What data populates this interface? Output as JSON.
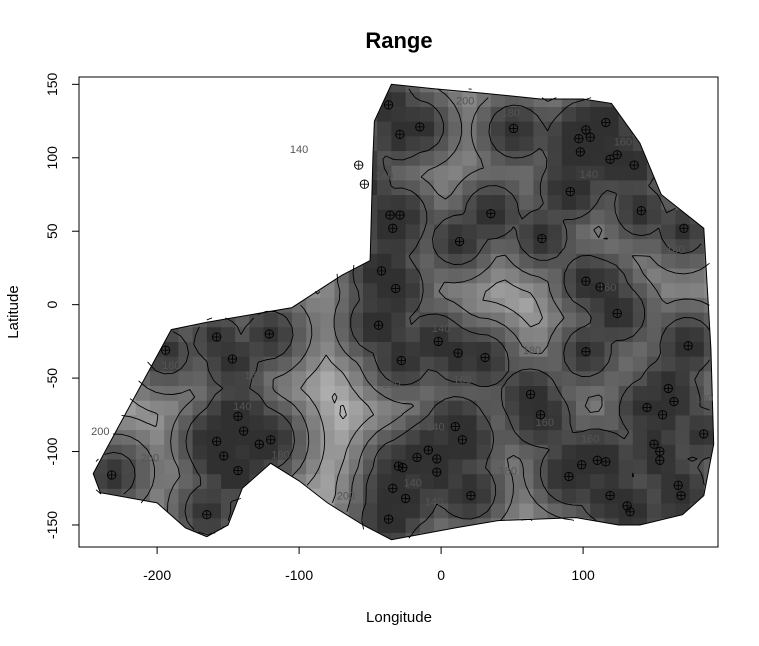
{
  "chart_data": {
    "type": "heatmap",
    "title": "Range",
    "xlabel": "Longitude",
    "ylabel": "Latitude",
    "xlim": [
      -255,
      195
    ],
    "ylim": [
      -165,
      155
    ],
    "xticks": [
      -200,
      -100,
      0,
      100
    ],
    "yticks": [
      -150,
      -100,
      -50,
      0,
      50,
      100,
      150
    ],
    "x_tick_labels": [
      "-200",
      "-100",
      "0",
      "100"
    ],
    "y_tick_labels": [
      "-150",
      "-100",
      "-50",
      "0",
      "50",
      "100",
      "150"
    ],
    "grid": false,
    "legend": "none",
    "value_range": [
      120,
      220
    ],
    "grayscale": {
      "low_color": "#303030",
      "high_color": "#cfcfcf"
    },
    "contour_levels": [
      140,
      160,
      180,
      200
    ],
    "contour_labels": [
      {
        "x": 17,
        "y": 139,
        "text": "200"
      },
      {
        "x": 49,
        "y": 131,
        "text": "180"
      },
      {
        "x": 128,
        "y": 111,
        "text": "160"
      },
      {
        "x": 104,
        "y": 89,
        "text": "140"
      },
      {
        "x": 165,
        "y": 38,
        "text": "180"
      },
      {
        "x": -40,
        "y": 88,
        "text": "140"
      },
      {
        "x": -100,
        "y": 106,
        "text": "140"
      },
      {
        "x": 117,
        "y": 12,
        "text": "160"
      },
      {
        "x": 0,
        "y": -16,
        "text": "140"
      },
      {
        "x": -190,
        "y": -41,
        "text": "180"
      },
      {
        "x": -132,
        "y": -48,
        "text": "160"
      },
      {
        "x": -140,
        "y": -69,
        "text": "140"
      },
      {
        "x": -35,
        "y": -54,
        "text": "180"
      },
      {
        "x": 15,
        "y": -51,
        "text": "160"
      },
      {
        "x": 64,
        "y": -31,
        "text": "180"
      },
      {
        "x": 73,
        "y": -80,
        "text": "160"
      },
      {
        "x": -4,
        "y": -83,
        "text": "140"
      },
      {
        "x": 105,
        "y": -91,
        "text": "160"
      },
      {
        "x": 185,
        "y": -64,
        "text": "180"
      },
      {
        "x": -113,
        "y": -102,
        "text": "180"
      },
      {
        "x": -205,
        "y": -104,
        "text": "200"
      },
      {
        "x": -240,
        "y": -86,
        "text": "200"
      },
      {
        "x": -67,
        "y": -130,
        "text": "200"
      },
      {
        "x": 47,
        "y": -113,
        "text": "180"
      },
      {
        "x": -20,
        "y": -121,
        "text": "140"
      },
      {
        "x": -5,
        "y": -134,
        "text": "140"
      }
    ],
    "sample_points": [
      {
        "x": -232,
        "y": -116
      },
      {
        "x": -194,
        "y": -31
      },
      {
        "x": -158,
        "y": -22
      },
      {
        "x": -147,
        "y": -37
      },
      {
        "x": -121,
        "y": -20
      },
      {
        "x": -158,
        "y": -93
      },
      {
        "x": -153,
        "y": -103
      },
      {
        "x": -143,
        "y": -76
      },
      {
        "x": -139,
        "y": -86
      },
      {
        "x": -128,
        "y": -95
      },
      {
        "x": -120,
        "y": -92
      },
      {
        "x": -143,
        "y": -113
      },
      {
        "x": -165,
        "y": -143
      },
      {
        "x": -58,
        "y": 95
      },
      {
        "x": -54,
        "y": 82
      },
      {
        "x": -37,
        "y": 136
      },
      {
        "x": -29,
        "y": 116
      },
      {
        "x": -15,
        "y": 121
      },
      {
        "x": -36,
        "y": 61
      },
      {
        "x": -29,
        "y": 61
      },
      {
        "x": -34,
        "y": 52
      },
      {
        "x": -42,
        "y": 23
      },
      {
        "x": -32,
        "y": 11
      },
      {
        "x": -44,
        "y": -14
      },
      {
        "x": -28,
        "y": -38
      },
      {
        "x": -2,
        "y": -25
      },
      {
        "x": 12,
        "y": -33
      },
      {
        "x": 31,
        "y": -36
      },
      {
        "x": 13,
        "y": 43
      },
      {
        "x": 35,
        "y": 62
      },
      {
        "x": 51,
        "y": 120
      },
      {
        "x": 71,
        "y": 45
      },
      {
        "x": 91,
        "y": 77
      },
      {
        "x": 97,
        "y": 113
      },
      {
        "x": 98,
        "y": 104
      },
      {
        "x": 102,
        "y": 119
      },
      {
        "x": 105,
        "y": 114
      },
      {
        "x": 116,
        "y": 124
      },
      {
        "x": 119,
        "y": 99
      },
      {
        "x": 124,
        "y": 102
      },
      {
        "x": 136,
        "y": 95
      },
      {
        "x": 141,
        "y": 64
      },
      {
        "x": 171,
        "y": 52
      },
      {
        "x": 102,
        "y": 16
      },
      {
        "x": 112,
        "y": 12
      },
      {
        "x": 124,
        "y": -6
      },
      {
        "x": 102,
        "y": -32
      },
      {
        "x": 174,
        "y": -28
      },
      {
        "x": 63,
        "y": -61
      },
      {
        "x": 70,
        "y": -75
      },
      {
        "x": -30,
        "y": -110
      },
      {
        "x": -34,
        "y": -125
      },
      {
        "x": -27,
        "y": -111
      },
      {
        "x": -25,
        "y": -132
      },
      {
        "x": -17,
        "y": -104
      },
      {
        "x": -9,
        "y": -99
      },
      {
        "x": -3,
        "y": -105
      },
      {
        "x": -3,
        "y": -114
      },
      {
        "x": 10,
        "y": -83
      },
      {
        "x": 15,
        "y": -92
      },
      {
        "x": 21,
        "y": -130
      },
      {
        "x": -37,
        "y": -146
      },
      {
        "x": 90,
        "y": -117
      },
      {
        "x": 99,
        "y": -109
      },
      {
        "x": 110,
        "y": -106
      },
      {
        "x": 116,
        "y": -107
      },
      {
        "x": 119,
        "y": -130
      },
      {
        "x": 131,
        "y": -137
      },
      {
        "x": 133,
        "y": -141
      },
      {
        "x": 145,
        "y": -70
      },
      {
        "x": 150,
        "y": -95
      },
      {
        "x": 154,
        "y": -100
      },
      {
        "x": 154,
        "y": -106
      },
      {
        "x": 156,
        "y": -75
      },
      {
        "x": 160,
        "y": -57
      },
      {
        "x": 164,
        "y": -66
      },
      {
        "x": 167,
        "y": -123
      },
      {
        "x": 169,
        "y": -130
      },
      {
        "x": 185,
        "y": -88
      }
    ]
  }
}
